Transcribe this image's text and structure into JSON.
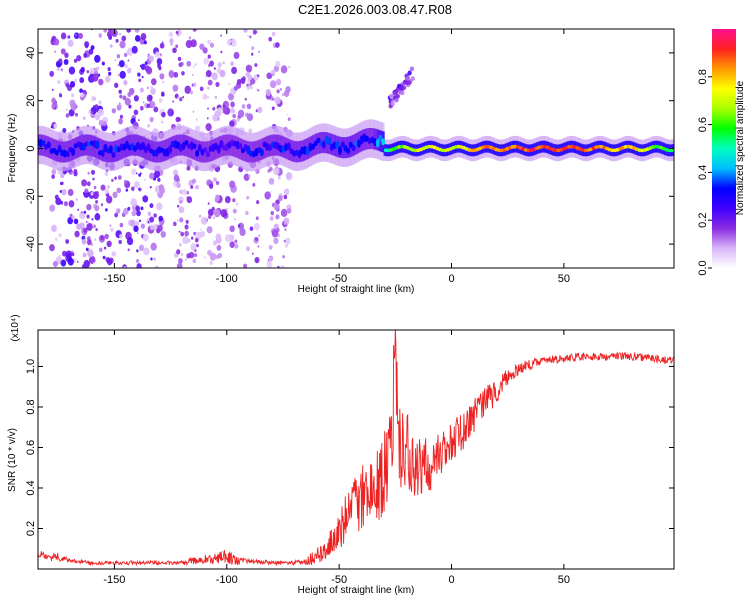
{
  "title": "C2E1.2026.003.08.47.R08",
  "chart_data": [
    {
      "type": "heatmap",
      "title": "C2E1.2026.003.08.47.R08",
      "xlabel": "Height of straight line (km)",
      "ylabel": "Frequency (Hz)",
      "xlim": [
        -184,
        99
      ],
      "ylim": [
        -50,
        50
      ],
      "x_ticks": [
        -150,
        -100,
        -50,
        0,
        50
      ],
      "x_tick_labels": [
        "-150",
        "-100",
        "-50",
        "0",
        "50"
      ],
      "y_ticks": [
        -40,
        -20,
        0,
        20,
        40
      ],
      "y_tick_labels": [
        "-40",
        "-20",
        "0",
        "20",
        "40"
      ],
      "colorbar": {
        "label": "Normalized spectral amplitude",
        "range": [
          0,
          1
        ],
        "ticks": [
          0.0,
          0.2,
          0.4,
          0.6,
          0.8
        ],
        "tick_labels": [
          "0.0",
          "0.2",
          "0.4",
          "0.6",
          "0.8"
        ],
        "colors": [
          "#ffffff",
          "#d8b4f8",
          "#8a2be2",
          "#3f00ff",
          "#0000ff",
          "#00bfff",
          "#00ffc0",
          "#00ff00",
          "#aaff00",
          "#ffff00",
          "#ff9900",
          "#ff2020",
          "#ff1090"
        ]
      },
      "features": [
        {
          "name": "doppler-line",
          "x_range": [
            -184,
            99
          ],
          "frequency_hz": 0,
          "description": "strong narrow line near 0 Hz, amplitude increasing toward positive heights"
        },
        {
          "name": "noise-scatter",
          "x_range": [
            -184,
            -70
          ],
          "frequency_range": [
            -50,
            50
          ]
        },
        {
          "name": "side-branch",
          "x_range": [
            -28,
            -17
          ],
          "frequency_range": [
            18,
            34
          ]
        }
      ],
      "line_amplitude_profile": {
        "x": [
          -184,
          -150,
          -120,
          -100,
          -80,
          -60,
          -45,
          -35,
          -28,
          -20,
          -10,
          0,
          10,
          20,
          40,
          60,
          80,
          99
        ],
        "amplitude": [
          0.3,
          0.32,
          0.3,
          0.28,
          0.3,
          0.32,
          0.34,
          0.3,
          0.55,
          0.68,
          0.74,
          0.7,
          0.78,
          0.86,
          0.9,
          0.88,
          0.78,
          0.5
        ]
      }
    },
    {
      "type": "line",
      "xlabel": "Height of straight line (km)",
      "ylabel": "SNR (10 * v/v)",
      "scale_note": "(x10⁴)",
      "xlim": [
        -184,
        99
      ],
      "ylim": [
        0,
        1.18
      ],
      "x_ticks": [
        -150,
        -100,
        -50,
        0,
        50
      ],
      "x_tick_labels": [
        "-150",
        "-100",
        "-50",
        "0",
        "50"
      ],
      "y_ticks": [
        0.2,
        0.4,
        0.6,
        0.8,
        1.0
      ],
      "y_tick_labels": [
        "0.2",
        "0.4",
        "0.6",
        "0.8",
        "1.0"
      ],
      "color": "#ee2222",
      "series": [
        {
          "name": "SNR",
          "x": [
            -184,
            -180,
            -175,
            -170,
            -160,
            -150,
            -140,
            -130,
            -120,
            -115,
            -110,
            -105,
            -100,
            -95,
            -90,
            -80,
            -70,
            -65,
            -60,
            -55,
            -50,
            -45,
            -40,
            -35,
            -30,
            -27,
            -25,
            -23,
            -20,
            -15,
            -10,
            -5,
            0,
            5,
            10,
            15,
            20,
            25,
            30,
            40,
            50,
            60,
            70,
            80,
            90,
            99
          ],
          "values": [
            0.08,
            0.05,
            0.06,
            0.04,
            0.03,
            0.03,
            0.03,
            0.03,
            0.03,
            0.04,
            0.05,
            0.05,
            0.06,
            0.04,
            0.04,
            0.03,
            0.03,
            0.04,
            0.06,
            0.12,
            0.2,
            0.28,
            0.35,
            0.4,
            0.46,
            0.55,
            0.95,
            0.62,
            0.6,
            0.5,
            0.52,
            0.55,
            0.62,
            0.68,
            0.76,
            0.82,
            0.88,
            0.95,
            0.99,
            1.03,
            1.04,
            1.05,
            1.05,
            1.05,
            1.04,
            1.03
          ],
          "amplitude_of_fluctuation": [
            0.03,
            0.02,
            0.02,
            0.01,
            0.01,
            0.01,
            0.01,
            0.01,
            0.01,
            0.02,
            0.02,
            0.03,
            0.04,
            0.02,
            0.01,
            0.01,
            0.01,
            0.02,
            0.04,
            0.06,
            0.1,
            0.14,
            0.16,
            0.18,
            0.22,
            0.25,
            0.22,
            0.22,
            0.2,
            0.16,
            0.14,
            0.12,
            0.1,
            0.1,
            0.09,
            0.08,
            0.06,
            0.04,
            0.03,
            0.02,
            0.02,
            0.02,
            0.02,
            0.02,
            0.02,
            0.02
          ]
        }
      ]
    }
  ]
}
